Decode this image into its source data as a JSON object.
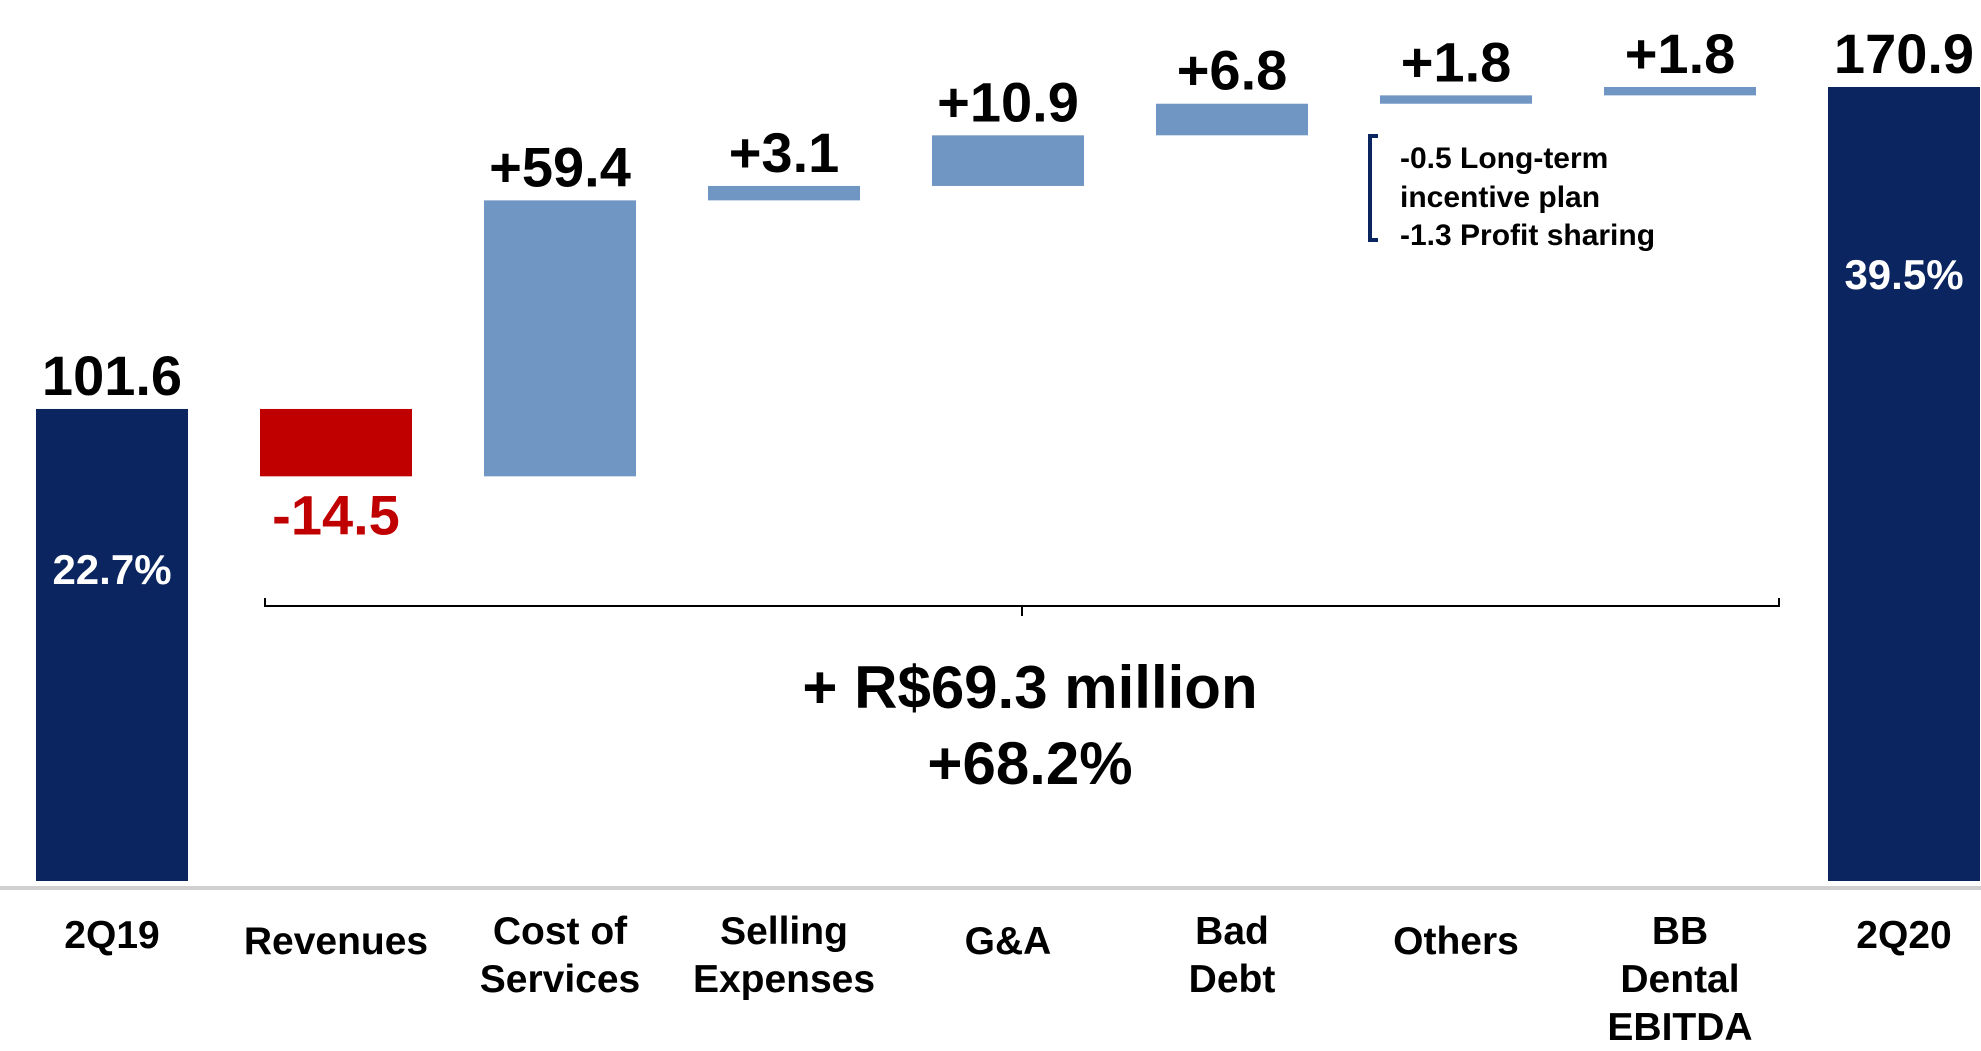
{
  "chart_data": {
    "type": "waterfall",
    "categories": [
      "2Q19",
      "Revenues",
      "Cost of\nServices",
      "Selling\nExpenses",
      "G&A",
      "Bad\nDebt",
      "Others",
      "BB\nDental\nEBITDA",
      "2Q20"
    ],
    "values": [
      101.6,
      -14.5,
      59.4,
      3.1,
      10.9,
      6.8,
      1.8,
      1.8,
      170.9
    ],
    "value_labels": [
      "101.6",
      "-14.5",
      "+59.4",
      "+3.1",
      "+10.9",
      "+6.8",
      "+1.8",
      "+1.8",
      "170.9"
    ],
    "inner_labels": [
      "22.7%",
      null,
      null,
      null,
      null,
      null,
      null,
      null,
      "39.5%"
    ],
    "colors": {
      "total": "#0b2560",
      "increase": "#7096c4",
      "decrease": "#c00000"
    },
    "annotations": {
      "change": "+ R$69.3 million",
      "change_pct": "+68.2%",
      "note": [
        "-0.5 Long-term",
        "incentive plan",
        "-1.3 Profit sharing"
      ]
    }
  }
}
